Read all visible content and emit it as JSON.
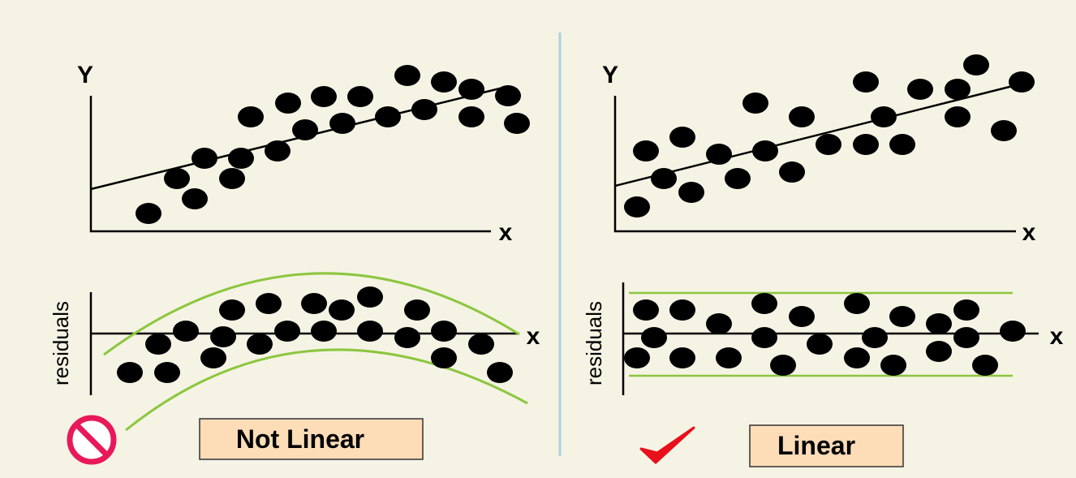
{
  "panels": [
    {
      "y_label": "Y",
      "x_label": "x",
      "residual_label": "residuals",
      "residual_x_label": "x",
      "verdict": "Not Linear"
    },
    {
      "y_label": "Y",
      "x_label": "x",
      "residual_label": "residuals",
      "residual_x_label": "x",
      "verdict": "Linear"
    }
  ]
}
